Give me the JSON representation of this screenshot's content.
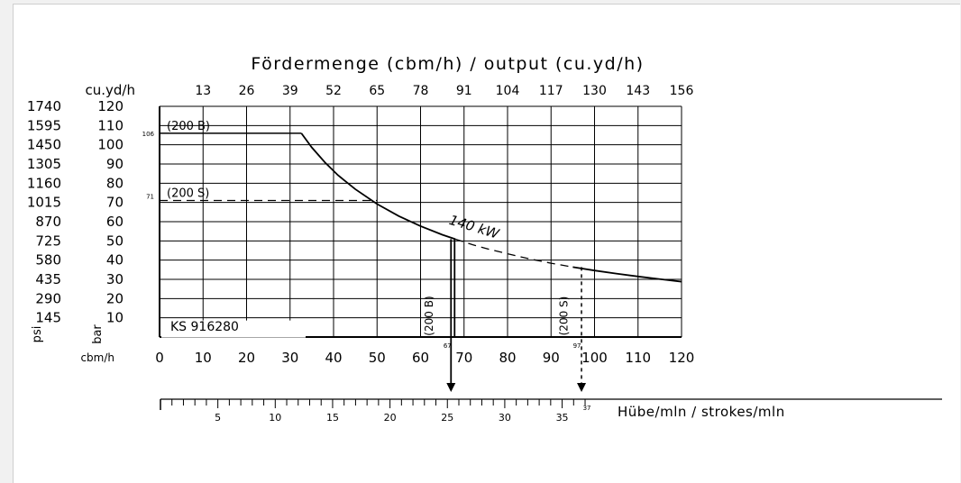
{
  "chart_data": {
    "type": "line",
    "title": "Fördermenge (cbm/h)  /  output (cu.yd/h)",
    "x_axis": {
      "label": "cbm/h",
      "range": [
        0,
        120
      ],
      "ticks": [
        0,
        10,
        20,
        30,
        40,
        50,
        60,
        70,
        80,
        90,
        100,
        110,
        120
      ]
    },
    "x2_axis": {
      "label": "cu.yd/h",
      "ticks": [
        {
          "label": "13",
          "cbm": 10
        },
        {
          "label": "26",
          "cbm": 20
        },
        {
          "label": "39",
          "cbm": 30
        },
        {
          "label": "52",
          "cbm": 40
        },
        {
          "label": "65",
          "cbm": 50
        },
        {
          "label": "78",
          "cbm": 60
        },
        {
          "label": "91",
          "cbm": 70
        },
        {
          "label": "104",
          "cbm": 80
        },
        {
          "label": "117",
          "cbm": 90
        },
        {
          "label": "130",
          "cbm": 100
        },
        {
          "label": "143",
          "cbm": 110
        },
        {
          "label": "156",
          "cbm": 120
        }
      ]
    },
    "y_axis": {
      "label": "bar",
      "range": [
        0,
        120
      ],
      "ticks": [
        10,
        20,
        30,
        40,
        50,
        60,
        70,
        80,
        90,
        100,
        110,
        120
      ]
    },
    "y2_axis": {
      "label": "psi",
      "ticks": [
        {
          "label": "145",
          "bar": 10
        },
        {
          "label": "290",
          "bar": 20
        },
        {
          "label": "435",
          "bar": 30
        },
        {
          "label": "580",
          "bar": 40
        },
        {
          "label": "725",
          "bar": 50
        },
        {
          "label": "870",
          "bar": 60
        },
        {
          "label": "1015",
          "bar": 70
        },
        {
          "label": "1160",
          "bar": 80
        },
        {
          "label": "1305",
          "bar": 90
        },
        {
          "label": "1450",
          "bar": 100
        },
        {
          "label": "1595",
          "bar": 110
        },
        {
          "label": "1740",
          "bar": 120
        }
      ]
    },
    "strokes_axis": {
      "label": "Hübe/mln  /  strokes/mln",
      "range": [
        0,
        38
      ],
      "major_ticks": [
        5,
        10,
        15,
        20,
        25,
        30,
        35
      ],
      "marker_labels": [
        {
          "label": "37",
          "value": 37
        }
      ]
    },
    "grid": true,
    "series": [
      {
        "name": "140 kW",
        "style": "solid",
        "x": [
          32.6,
          35,
          38,
          41,
          45,
          50,
          55,
          60,
          65,
          68
        ],
        "y": [
          106,
          98.6,
          90.9,
          84.2,
          76.9,
          69.2,
          62.9,
          57.7,
          53.2,
          50.9
        ]
      },
      {
        "name": "140 kW",
        "style": "dashed",
        "x": [
          68,
          72,
          76,
          80,
          85,
          90,
          95
        ],
        "y": [
          50.9,
          48.0,
          45.5,
          43.3,
          40.7,
          38.4,
          36.4
        ]
      },
      {
        "name": "140 kW",
        "style": "solid",
        "x": [
          95,
          100,
          105,
          110,
          115,
          120
        ],
        "y": [
          36.4,
          34.6,
          33.0,
          31.5,
          30.1,
          28.8
        ]
      }
    ],
    "annotations": {
      "curve_label": "140 kW",
      "ref_200B": {
        "label": "(200 B)",
        "pressure": 106,
        "pressure_label": "106",
        "vertical_label": "(200 B)",
        "output": 67,
        "output_label": "67"
      },
      "ref_200S": {
        "label": "(200 S)",
        "pressure": 71,
        "pressure_label": "71",
        "vertical_label": "(200 S)",
        "output": 97,
        "output_label": "97"
      },
      "model": "KS 916280"
    }
  }
}
